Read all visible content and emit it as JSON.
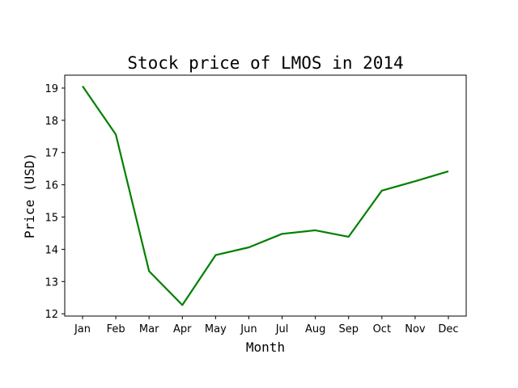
{
  "chart_data": {
    "type": "line",
    "title": "Stock price of LMOS in 2014",
    "xlabel": "Month",
    "ylabel": "Price (USD)",
    "categories": [
      "Jan",
      "Feb",
      "Mar",
      "Apr",
      "May",
      "Jun",
      "Jul",
      "Aug",
      "Sep",
      "Oct",
      "Nov",
      "Dec"
    ],
    "series": [
      {
        "values": [
          19.06,
          17.56,
          13.32,
          12.27,
          13.82,
          14.06,
          14.48,
          14.59,
          14.39,
          15.82,
          16.11,
          16.42
        ]
      }
    ],
    "yticks": [
      12,
      13,
      14,
      15,
      16,
      17,
      18,
      19
    ],
    "ylim": [
      11.93,
      19.4
    ],
    "grid": false,
    "legend": "none",
    "line_color": "#008000"
  }
}
